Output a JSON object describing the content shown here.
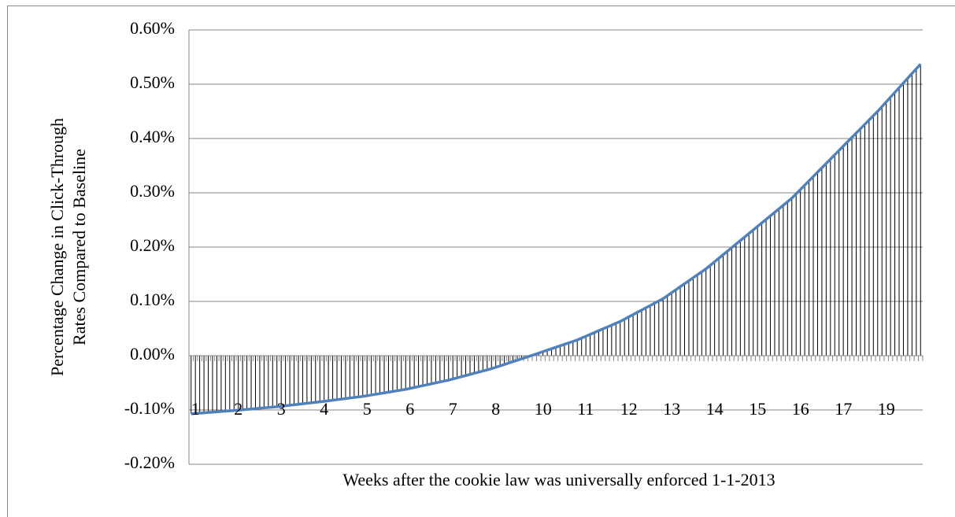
{
  "chart_data": {
    "type": "line",
    "xlabel": "Weeks after the cookie law was universally enforced 1-1-2013",
    "ylabel": "Percentage Change in Click-Through Rates Compared to Baseline",
    "categories": [
      "1",
      null,
      null,
      null,
      null,
      null,
      null,
      null,
      null,
      null,
      "2",
      null,
      null,
      null,
      null,
      null,
      null,
      null,
      null,
      null,
      "3",
      null,
      null,
      null,
      null,
      null,
      null,
      null,
      null,
      null,
      "4",
      null,
      null,
      null,
      null,
      null,
      null,
      null,
      null,
      null,
      "5",
      null,
      null,
      null,
      null,
      null,
      null,
      null,
      null,
      null,
      "6",
      null,
      null,
      null,
      null,
      null,
      null,
      null,
      null,
      null,
      "7",
      null,
      null,
      null,
      null,
      null,
      null,
      null,
      null,
      null,
      "8",
      null,
      null,
      null,
      null,
      null,
      null,
      null,
      null,
      null,
      "10",
      null,
      null,
      null,
      null,
      null,
      null,
      null,
      null,
      null,
      "11",
      null,
      null,
      null,
      null,
      null,
      null,
      null,
      null,
      null,
      "12",
      null,
      null,
      null,
      null,
      null,
      null,
      null,
      null,
      null,
      "13",
      null,
      null,
      null,
      null,
      null,
      null,
      null,
      null,
      null,
      "14",
      null,
      null,
      null,
      null,
      null,
      null,
      null,
      null,
      null,
      "15",
      null,
      null,
      null,
      null,
      null,
      null,
      null,
      null,
      null,
      "16",
      null,
      null,
      null,
      null,
      null,
      null,
      null,
      null,
      null,
      "17",
      null,
      null,
      null,
      null,
      null,
      null,
      null,
      null,
      null,
      "19",
      null,
      null,
      null,
      null,
      null,
      null,
      null,
      null,
      null,
      null
    ],
    "values": [
      -0.107,
      -0.1064,
      -0.1058,
      -0.1052,
      -0.1046,
      -0.104,
      -0.1034,
      -0.1028,
      -0.1022,
      -0.1016,
      -0.101,
      -0.1003,
      -0.0996,
      -0.0989,
      -0.0982,
      -0.0975,
      -0.0968,
      -0.0961,
      -0.0954,
      -0.0947,
      -0.094,
      -0.0931,
      -0.0922,
      -0.0913,
      -0.0904,
      -0.0895,
      -0.0886,
      -0.0877,
      -0.0868,
      -0.0859,
      -0.085,
      -0.084,
      -0.083,
      -0.082,
      -0.081,
      -0.08,
      -0.079,
      -0.078,
      -0.077,
      -0.076,
      -0.075,
      -0.0737,
      -0.0724,
      -0.0711,
      -0.0698,
      -0.0685,
      -0.0672,
      -0.0659,
      -0.0646,
      -0.0633,
      -0.062,
      -0.0603,
      -0.0586,
      -0.0569,
      -0.0552,
      -0.0535,
      -0.0518,
      -0.0501,
      -0.0484,
      -0.0467,
      -0.045,
      -0.0429,
      -0.0408,
      -0.0387,
      -0.0366,
      -0.0345,
      -0.0324,
      -0.0303,
      -0.0282,
      -0.0261,
      -0.024,
      -0.0214,
      -0.0188,
      -0.0162,
      -0.0136,
      -0.011,
      -0.0084,
      -0.0058,
      -0.0032,
      -0.0006,
      0.002,
      0.0047,
      0.0074,
      0.0101,
      0.0128,
      0.0155,
      0.0182,
      0.0209,
      0.0236,
      0.0263,
      0.029,
      0.0324,
      0.0358,
      0.0392,
      0.0426,
      0.046,
      0.0494,
      0.0528,
      0.0562,
      0.0596,
      0.063,
      0.0672,
      0.0714,
      0.0756,
      0.0798,
      0.084,
      0.0882,
      0.0924,
      0.0966,
      0.1008,
      0.105,
      0.1105,
      0.116,
      0.1215,
      0.127,
      0.1325,
      0.138,
      0.1435,
      0.149,
      0.1545,
      0.16,
      0.1665,
      0.173,
      0.1795,
      0.186,
      0.1925,
      0.199,
      0.2055,
      0.212,
      0.2185,
      0.225,
      0.2315,
      0.238,
      0.2445,
      0.251,
      0.2575,
      0.264,
      0.2705,
      0.277,
      0.2835,
      0.29,
      0.298,
      0.306,
      0.314,
      0.322,
      0.33,
      0.338,
      0.346,
      0.354,
      0.362,
      0.37,
      0.378,
      0.386,
      0.394,
      0.402,
      0.41,
      0.418,
      0.426,
      0.434,
      0.442,
      0.45,
      0.4587,
      0.4674,
      0.4761,
      0.4848,
      0.4935,
      0.5022,
      0.5109,
      0.5196,
      0.5283,
      0.537
    ],
    "color": "#4f81bd",
    "drop_lines": true,
    "ylim": [
      -0.2,
      0.6
    ],
    "yticks": [
      {
        "value": -0.2,
        "label": "-0.20%"
      },
      {
        "value": -0.1,
        "label": "-0.10%"
      },
      {
        "value": 0,
        "label": "0.00%"
      },
      {
        "value": 0.1,
        "label": "0.10%"
      },
      {
        "value": 0.2,
        "label": "0.20%"
      },
      {
        "value": 0.3,
        "label": "0.30%"
      },
      {
        "value": 0.4,
        "label": "0.40%"
      },
      {
        "value": 0.5,
        "label": "0.50%"
      },
      {
        "value": 0.6,
        "label": "0.60%"
      }
    ],
    "grid": true
  }
}
